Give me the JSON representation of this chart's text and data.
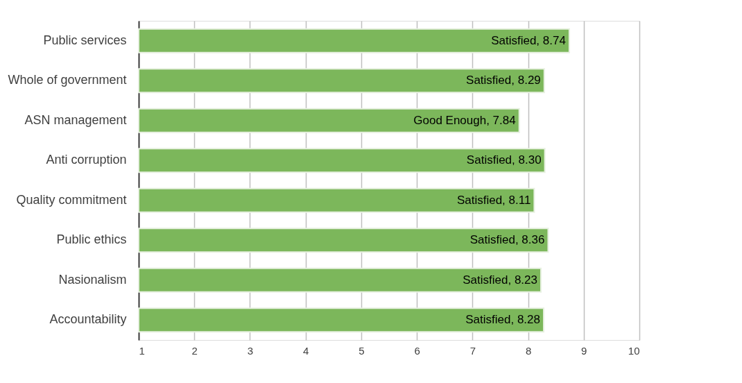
{
  "chart_data": {
    "type": "bar",
    "orientation": "horizontal",
    "categories": [
      "Public services",
      "Whole of government",
      "ASN management",
      "Anti corruption",
      "Quality commitment",
      "Public ethics",
      "Nasionalism",
      "Accountability"
    ],
    "values": [
      8.74,
      8.29,
      7.84,
      8.3,
      8.11,
      8.36,
      8.23,
      8.28
    ],
    "value_labels": [
      "Satisfied, 8.74",
      "Satisfied, 8.29",
      "Good Enough, 7.84",
      "Satisfied, 8.30",
      "Satisfied, 8.11",
      "Satisfied, 8.36",
      "Satisfied, 8.23",
      "Satisfied, 8.28"
    ],
    "color": "#7cb75b",
    "xlim": [
      1,
      10
    ],
    "xticks": [
      1,
      2,
      3,
      4,
      5,
      6,
      7,
      8,
      9,
      10
    ],
    "grid": "x"
  }
}
